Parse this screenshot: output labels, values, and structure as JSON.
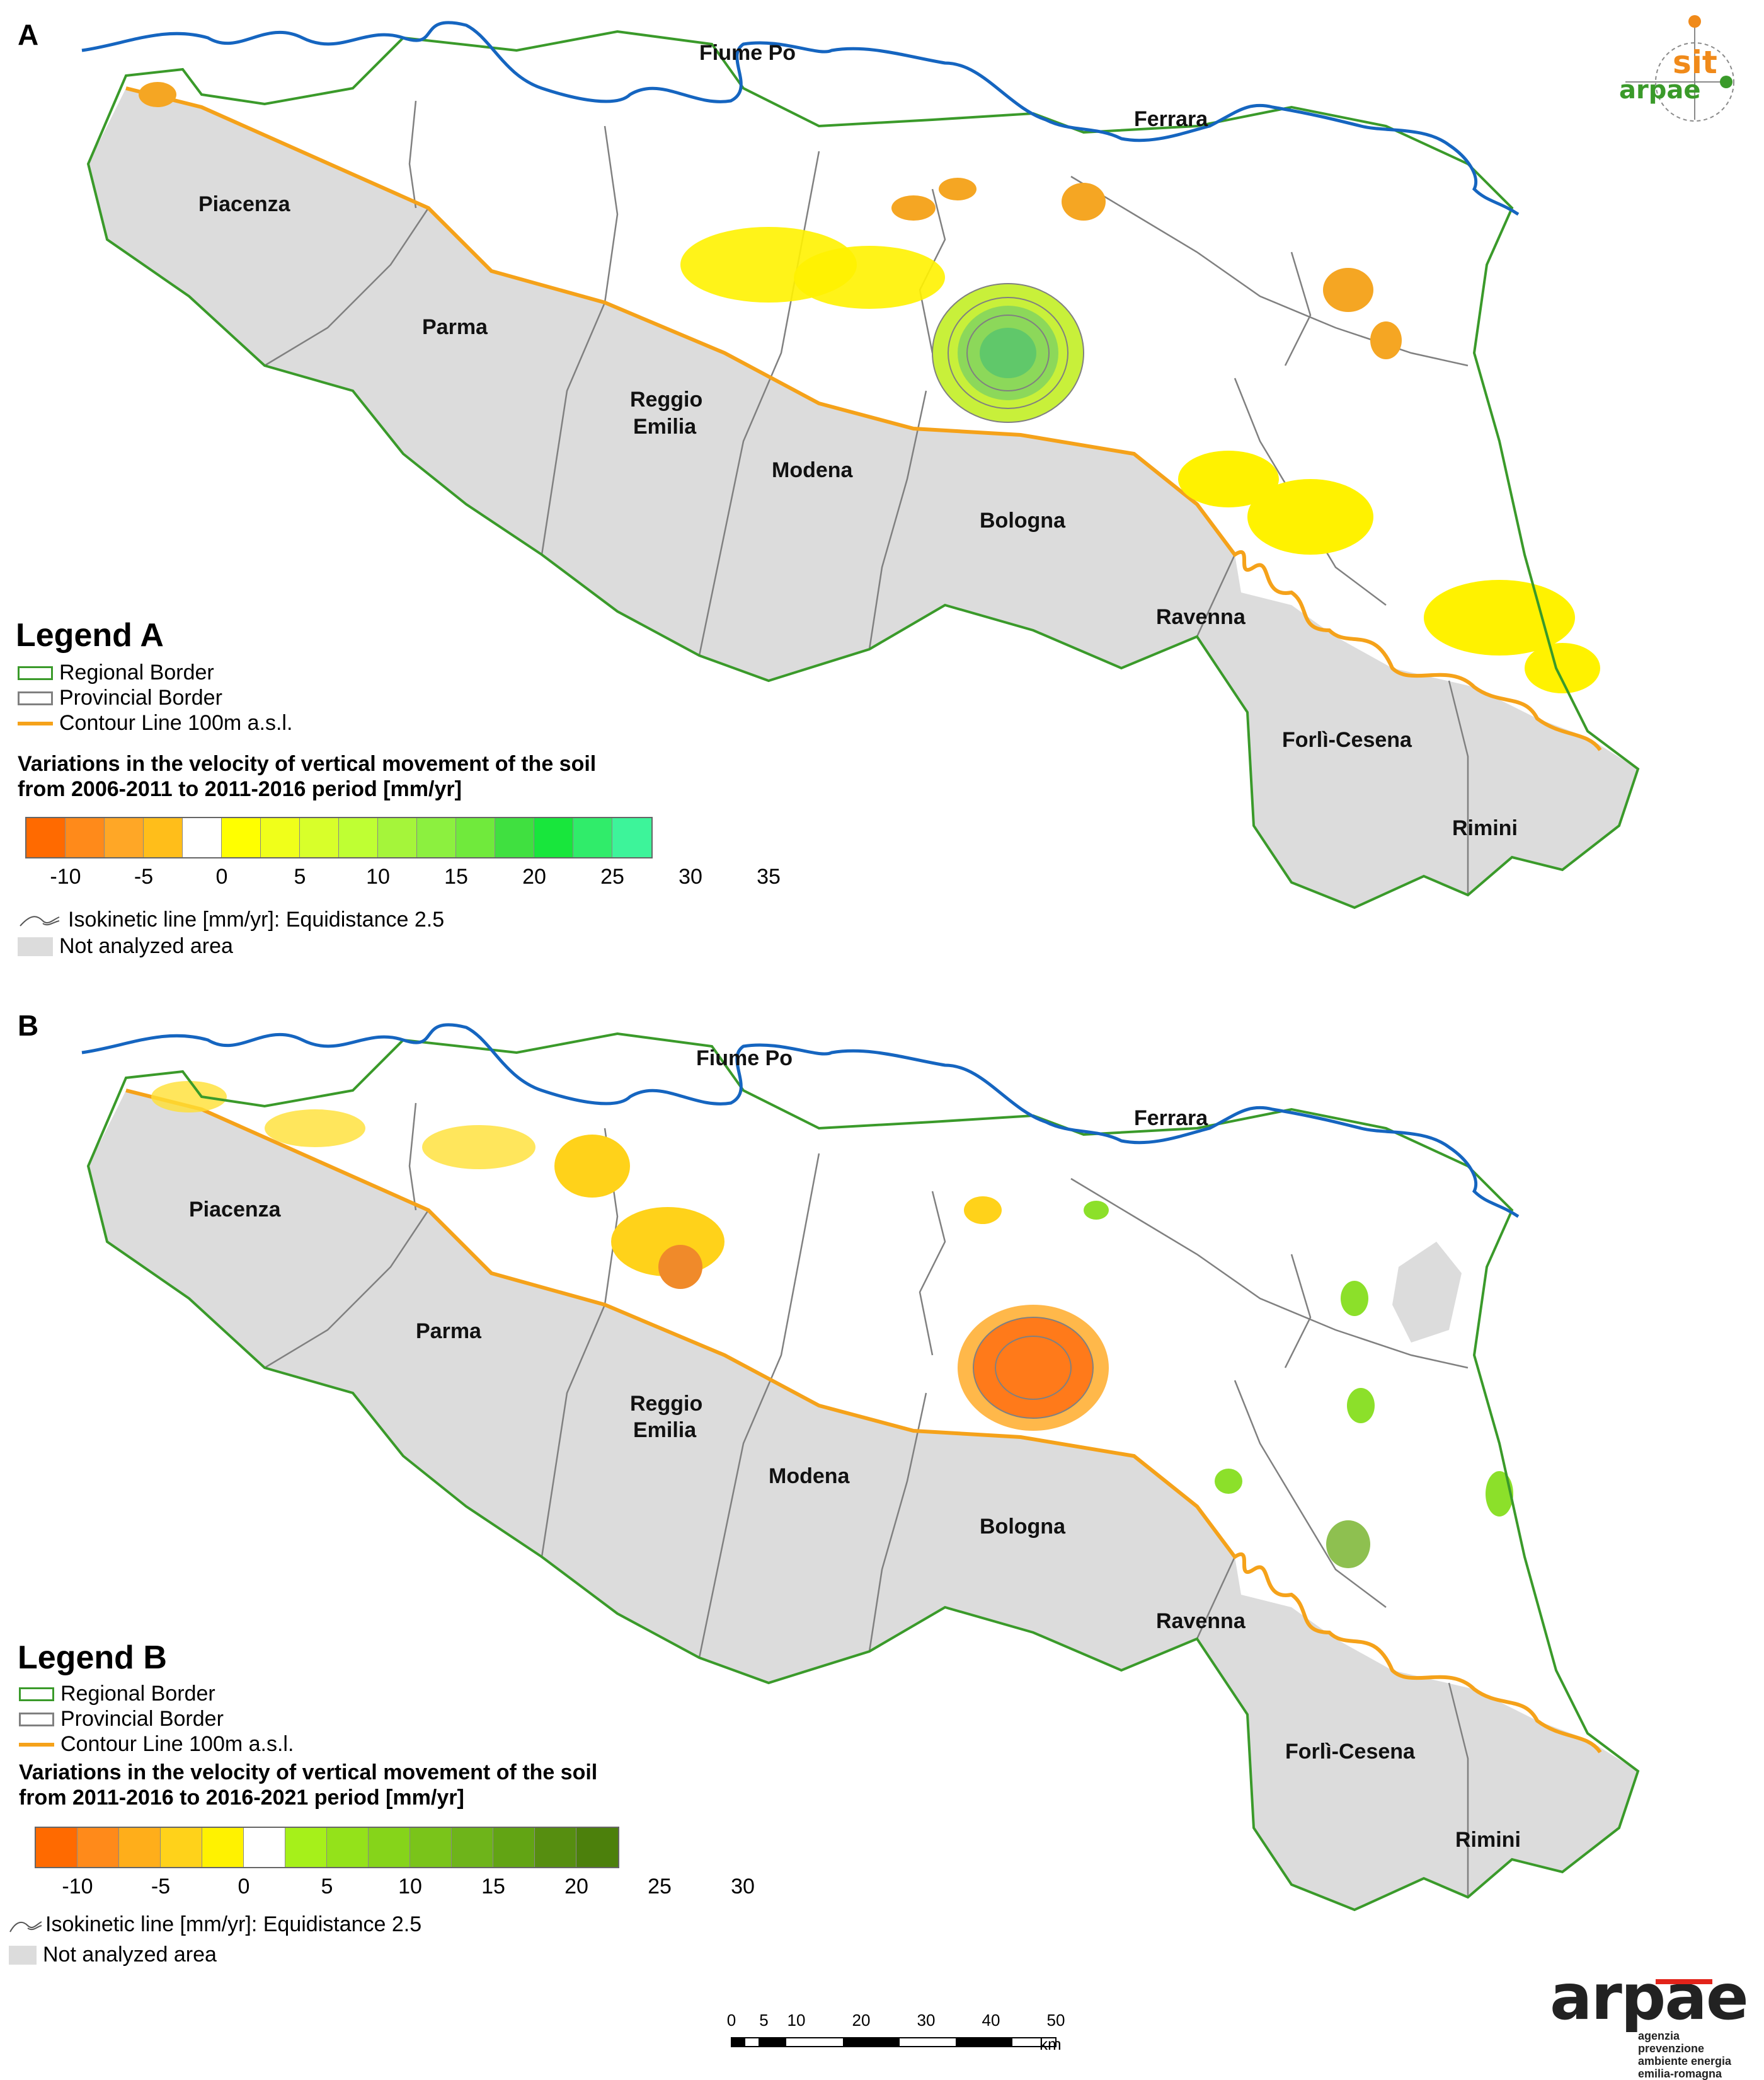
{
  "panel_a": {
    "letter": "A",
    "places": {
      "fiume_po": "Fiume Po",
      "ferrara": "Ferrara",
      "piacenza": "Piacenza",
      "parma": "Parma",
      "reggio_emilia_1": "Reggio",
      "reggio_emilia_2": "Emilia",
      "modena": "Modena",
      "bologna": "Bologna",
      "ravenna": "Ravenna",
      "forli_cesena": "Forlì-Cesena",
      "rimini": "Rimini"
    },
    "legend": {
      "title": "Legend A",
      "regional_border": "Regional Border",
      "provincial_border": "Provincial Border",
      "contour_line": "Contour Line 100m a.s.l.",
      "variations_title_1": "Variations in the velocity of vertical movement of the soil",
      "variations_title_2": "from 2006-2011 to 2011-2016 period [mm/yr]",
      "colors": [
        "#ff6a00",
        "#ff8a1a",
        "#ffa726",
        "#ffbe1a",
        "#ffffff",
        "#ffff00",
        "#f0ff1a",
        "#d8ff2a",
        "#bfff33",
        "#a5f53a",
        "#8cf03f",
        "#70ea3c",
        "#40e040",
        "#18e63c",
        "#30ec6a",
        "#3df49a"
      ],
      "ticks": [
        "-10",
        "-5",
        "0",
        "5",
        "10",
        "15",
        "20",
        "25",
        "30",
        "35"
      ],
      "isokinetic": "Isokinetic line [mm/yr]: Equidistance 2.5",
      "not_analyzed": "Not analyzed area"
    }
  },
  "panel_b": {
    "letter": "B",
    "places": {
      "fiume_po": "Fiume Po",
      "ferrara": "Ferrara",
      "piacenza": "Piacenza",
      "parma": "Parma",
      "reggio_emilia_1": "Reggio",
      "reggio_emilia_2": "Emilia",
      "modena": "Modena",
      "bologna": "Bologna",
      "ravenna": "Ravenna",
      "forli_cesena": "Forlì-Cesena",
      "rimini": "Rimini"
    },
    "legend": {
      "title": "Legend B",
      "regional_border": "Regional Border",
      "provincial_border": "Provincial Border",
      "contour_line": "Contour Line 100m a.s.l.",
      "variations_title_1": "Variations in the velocity of vertical movement of the soil",
      "variations_title_2": "from 2011-2016 to 2016-2021 period [mm/yr]",
      "colors": [
        "#ff6a00",
        "#ff8a1a",
        "#ffae1a",
        "#ffd21a",
        "#fff200",
        "#ffffff",
        "#a6f01a",
        "#94e21a",
        "#86d41a",
        "#7ac41a",
        "#6eb41a",
        "#62a414",
        "#568e10",
        "#4c800c"
      ],
      "ticks": [
        "-10",
        "-5",
        "0",
        "5",
        "10",
        "15",
        "20",
        "25",
        "30"
      ],
      "isokinetic": "Isokinetic line [mm/yr]: Equidistance 2.5",
      "not_analyzed": "Not analyzed area"
    }
  },
  "scale_bar": {
    "labels": [
      "0",
      "5",
      "10",
      "20",
      "30",
      "40",
      "50"
    ],
    "unit": "km"
  },
  "logos": {
    "sit_text": "sit",
    "arpae_small": "arpae",
    "arpae_big": "arpae",
    "arpae_tagline": [
      "agenzia",
      "prevenzione",
      "ambiente energia",
      "emilia-romagna"
    ]
  },
  "colors": {
    "river": "#1565c0",
    "regional_border": "#3a9a2a",
    "provincial_border": "#808080",
    "contour_line": "#f5a21a",
    "not_analyzed": "#dcdcdc"
  }
}
